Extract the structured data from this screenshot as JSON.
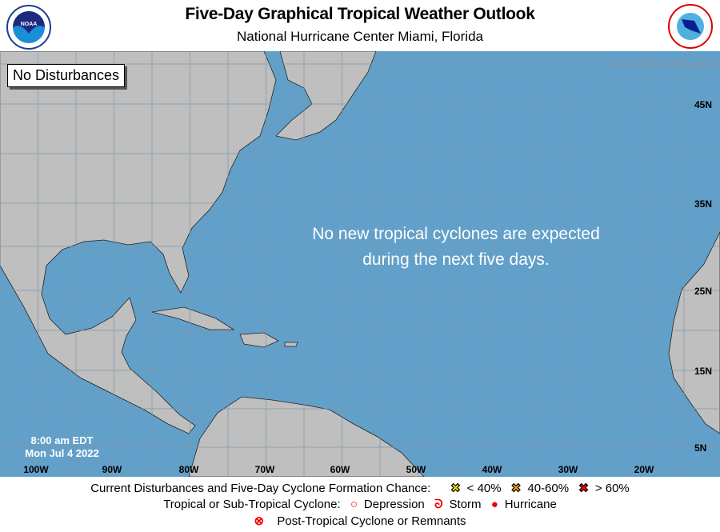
{
  "header": {
    "title": "Five-Day Graphical Tropical Weather Outlook",
    "subtitle": "National Hurricane Center  Miami, Florida",
    "noaa_logo": "NOAA",
    "nws_logo": "NATIONAL WEATHER SERVICE"
  },
  "map": {
    "status_box": "No Disturbances",
    "website": "www.hurricanes.gov",
    "message_line1": "No new tropical cyclones are expected",
    "message_line2": "during the next five days.",
    "time": "8:00 am EDT",
    "date": "Mon Jul 4 2022",
    "lon_labels": [
      "100W",
      "90W",
      "80W",
      "70W",
      "60W",
      "50W",
      "40W",
      "30W",
      "20W"
    ],
    "lat_labels": [
      "45N",
      "35N",
      "25N",
      "15N",
      "5N"
    ],
    "colors": {
      "ocean": "#62a0c9",
      "land": "#bfbfbf",
      "grid": "#7f97a8"
    }
  },
  "legend": {
    "row1_label": "Current Disturbances and Five-Day Cyclone Formation Chance:",
    "low": "< 40%",
    "mid": "40-60%",
    "high": "> 60%",
    "low_color": "#ffff00",
    "mid_color": "#ff9900",
    "high_color": "#ff0000",
    "row2_label": "Tropical or Sub-Tropical Cyclone:",
    "depression": "Depression",
    "storm": "Storm",
    "hurricane": "Hurricane",
    "row3_label": "Post-Tropical Cyclone or Remnants"
  }
}
